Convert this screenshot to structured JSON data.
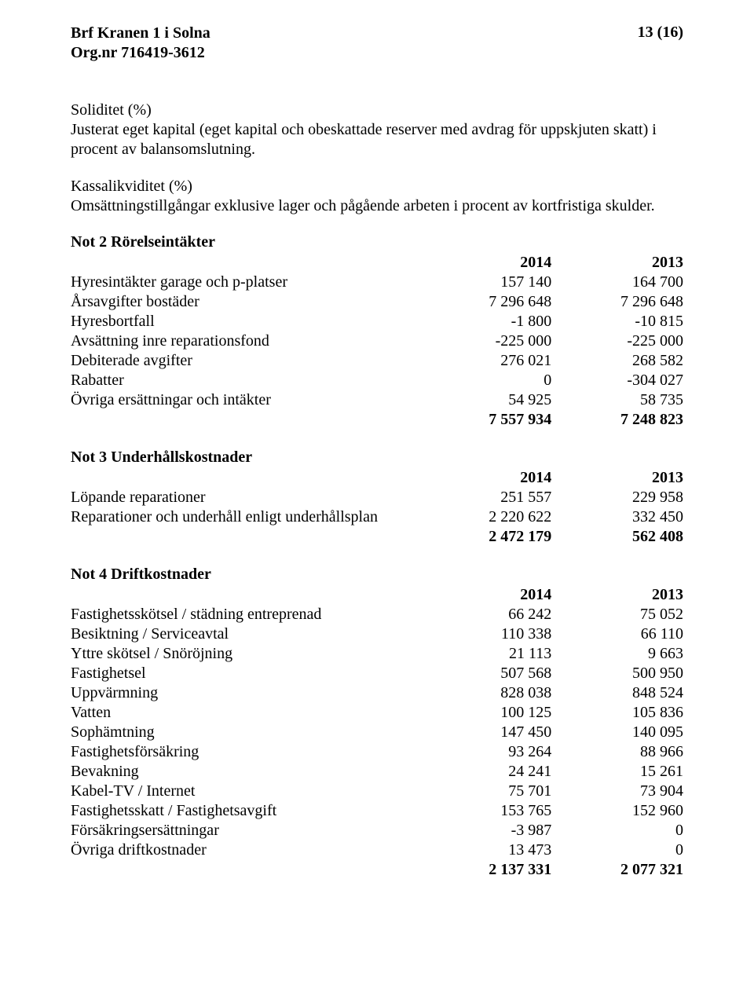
{
  "header": {
    "org_name": "Brf Kranen 1 i Solna",
    "org_nr_label": "Org.nr 716419-3612",
    "page_label": "13 (16)"
  },
  "soliditet": {
    "label": "Soliditet (%)",
    "text": "Justerat eget kapital (eget kapital och obeskattade reserver med avdrag för uppskjuten skatt) i procent av balansomslutning."
  },
  "kassalikviditet": {
    "label": "Kassalikviditet (%)",
    "text": "Omsättningstillgångar exklusive lager och pågående arbeten i procent av kortfristiga skulder."
  },
  "notes": [
    {
      "title": "Not 2 Rörelseintäkter",
      "col1": "2014",
      "col2": "2013",
      "rows": [
        {
          "label": "Hyresintäkter garage och p-platser",
          "v1": "157 140",
          "v2": "164 700"
        },
        {
          "label": "Årsavgifter bostäder",
          "v1": "7 296 648",
          "v2": "7 296 648"
        },
        {
          "label": "Hyresbortfall",
          "v1": "-1 800",
          "v2": "-10 815"
        },
        {
          "label": "Avsättning inre reparationsfond",
          "v1": "-225 000",
          "v2": "-225 000"
        },
        {
          "label": "Debiterade avgifter",
          "v1": "276 021",
          "v2": "268 582"
        },
        {
          "label": "Rabatter",
          "v1": "0",
          "v2": "-304 027"
        },
        {
          "label": "Övriga ersättningar och intäkter",
          "v1": "54 925",
          "v2": "58 735"
        }
      ],
      "total": {
        "v1": "7 557 934",
        "v2": "7 248 823"
      }
    },
    {
      "title": "Not 3 Underhållskostnader",
      "col1": "2014",
      "col2": "2013",
      "rows": [
        {
          "label": "Löpande reparationer",
          "v1": "251 557",
          "v2": "229 958"
        },
        {
          "label": "Reparationer och underhåll enligt underhållsplan",
          "v1": "2 220 622",
          "v2": "332 450"
        }
      ],
      "total": {
        "v1": "2 472 179",
        "v2": "562 408"
      }
    },
    {
      "title": "Not 4 Driftkostnader",
      "col1": "2014",
      "col2": "2013",
      "rows": [
        {
          "label": "Fastighetsskötsel / städning entreprenad",
          "v1": "66 242",
          "v2": "75 052"
        },
        {
          "label": "Besiktning / Serviceavtal",
          "v1": "110 338",
          "v2": "66 110"
        },
        {
          "label": "Yttre skötsel / Snöröjning",
          "v1": "21 113",
          "v2": "9 663"
        },
        {
          "label": "Fastighetsel",
          "v1": "507 568",
          "v2": "500 950"
        },
        {
          "label": "Uppvärmning",
          "v1": "828 038",
          "v2": "848 524"
        },
        {
          "label": "Vatten",
          "v1": "100 125",
          "v2": "105 836"
        },
        {
          "label": "Sophämtning",
          "v1": "147 450",
          "v2": "140 095"
        },
        {
          "label": "Fastighetsförsäkring",
          "v1": "93 264",
          "v2": "88 966"
        },
        {
          "label": "Bevakning",
          "v1": "24 241",
          "v2": "15 261"
        },
        {
          "label": "Kabel-TV / Internet",
          "v1": "75 701",
          "v2": "73 904"
        },
        {
          "label": "Fastighetsskatt / Fastighetsavgift",
          "v1": "153 765",
          "v2": "152 960"
        },
        {
          "label": "Försäkringsersättningar",
          "v1": "-3 987",
          "v2": "0"
        },
        {
          "label": "Övriga driftkostnader",
          "v1": "13 473",
          "v2": "0"
        }
      ],
      "total": {
        "v1": "2 137 331",
        "v2": "2 077 321"
      }
    }
  ]
}
